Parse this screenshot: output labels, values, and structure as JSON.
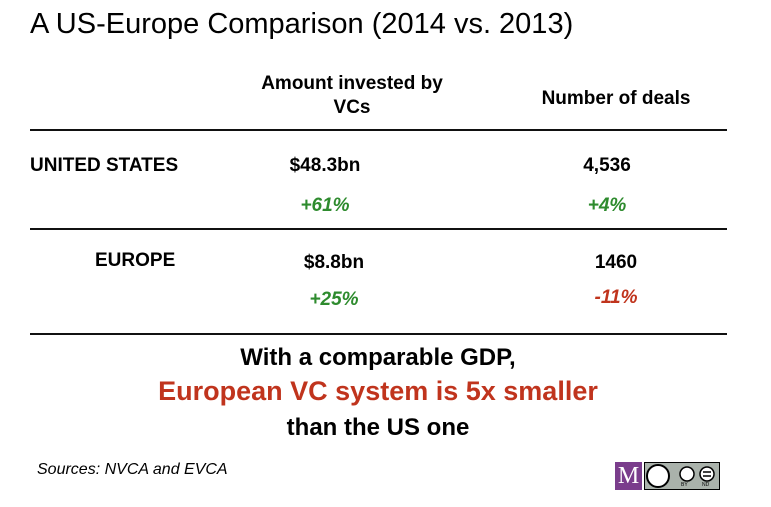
{
  "title": "A US-Europe Comparison (2014 vs. 2013)",
  "table": {
    "headers": [
      "Amount invested by VCs",
      "Number of deals"
    ],
    "rows": [
      {
        "label": "UNITED STATES",
        "amount": "$48.3bn",
        "amount_change": "+61%",
        "deals": "4,536",
        "deals_change": "+4%"
      },
      {
        "label": "EUROPE",
        "amount": "$8.8bn",
        "amount_change": "+25%",
        "deals": "1460",
        "deals_change": "-11%"
      }
    ]
  },
  "conclusion": [
    "With a comparable GDP,",
    "European VC system is 5x smaller",
    "than the US one"
  ],
  "source": "Sources: NVCA and EVCA",
  "license": {
    "logo": "M",
    "badge": [
      "BY",
      "ND"
    ]
  }
}
